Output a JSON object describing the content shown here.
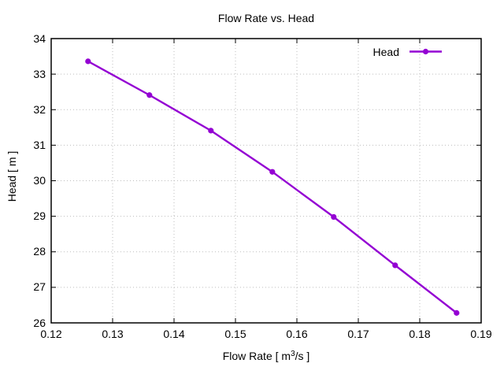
{
  "figure": {
    "title": "Flow Rate vs. Head"
  },
  "legend": {
    "label": "Head"
  },
  "axes": {
    "x_label_prefix": "Flow Rate [ m",
    "x_label_sup": "3",
    "x_label_suffix": "/s ]",
    "y_label": "Head [ m ]"
  },
  "colors": {
    "series": "#9400d3",
    "grid": "#bdbdbd",
    "axis": "#000000",
    "text": "#000000",
    "background": "#ffffff"
  },
  "chart_data": {
    "type": "line",
    "title": "Flow Rate vs. Head",
    "xlabel": "Flow Rate [ m³/s ]",
    "ylabel": "Head [ m ]",
    "xlim": [
      0.12,
      0.19
    ],
    "ylim": [
      26,
      34
    ],
    "grid": true,
    "xticks": {
      "values": [
        0.12,
        0.13,
        0.14,
        0.15,
        0.16,
        0.17,
        0.18,
        0.19
      ],
      "labels": [
        "0.12",
        "0.13",
        "0.14",
        "0.15",
        "0.16",
        "0.17",
        "0.18",
        "0.19"
      ]
    },
    "yticks": {
      "values": [
        26,
        27,
        28,
        29,
        30,
        31,
        32,
        33,
        34
      ],
      "labels": [
        "26",
        "27",
        "28",
        "29",
        "30",
        "31",
        "32",
        "33",
        "34"
      ]
    },
    "legend": {
      "label": "Head",
      "position": "top-right-inside",
      "marker": "filled-circle"
    },
    "series": [
      {
        "name": "Head",
        "style": "line+markers",
        "marker": "filled-circle",
        "x": [
          0.126,
          0.136,
          0.146,
          0.156,
          0.166,
          0.176,
          0.186
        ],
        "y": [
          33.36,
          32.41,
          31.41,
          30.25,
          28.98,
          27.62,
          26.28
        ]
      }
    ]
  }
}
